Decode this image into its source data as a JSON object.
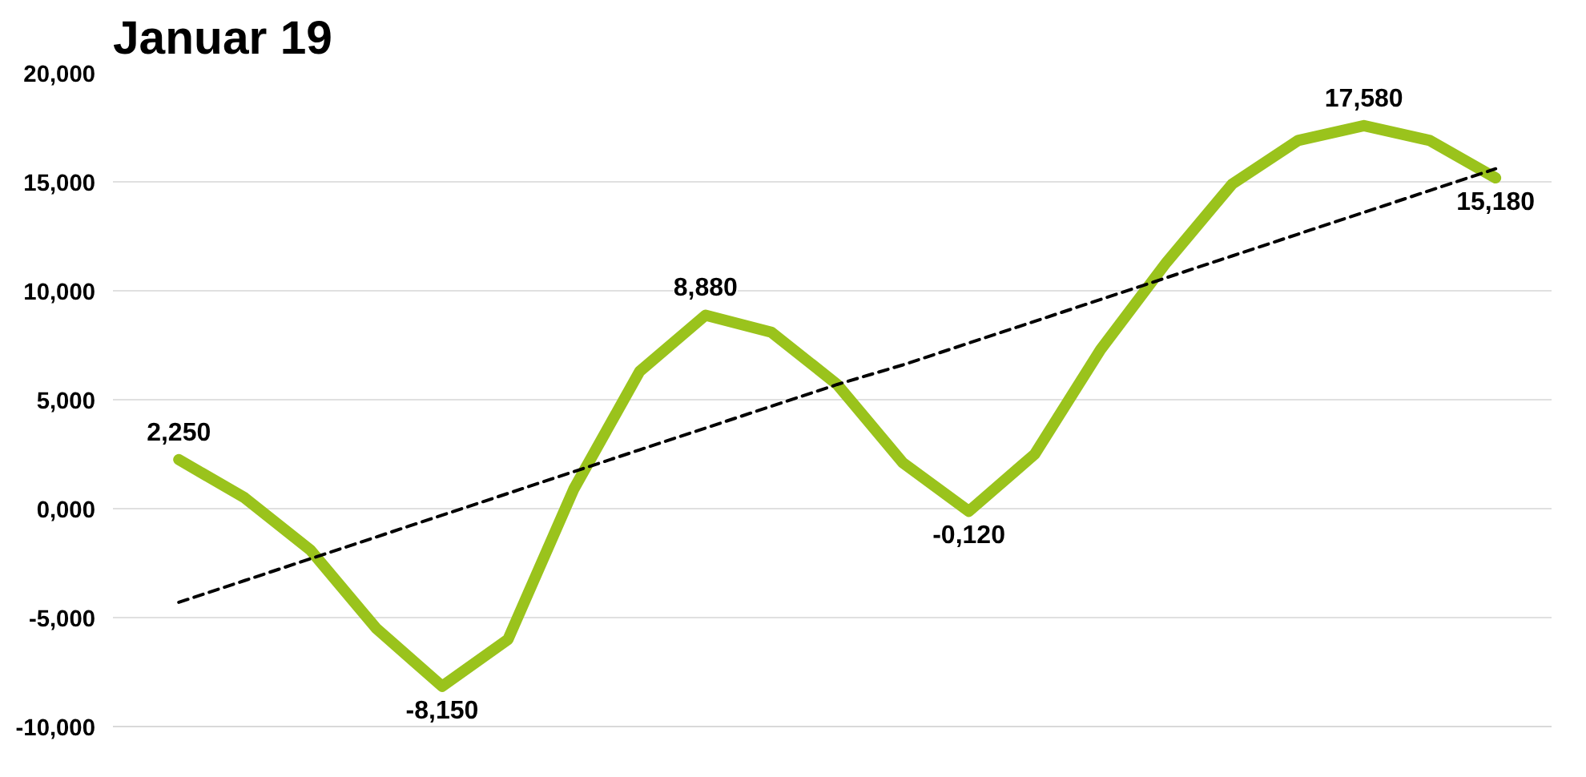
{
  "chart_data": {
    "type": "line",
    "title": "Januar 19",
    "categories": [
      null,
      null,
      null,
      null,
      null,
      null,
      null,
      null,
      null,
      null,
      null,
      null,
      null,
      null,
      null,
      null,
      null,
      null,
      null,
      null,
      null
    ],
    "ylim": [
      -10,
      20
    ],
    "yticks": [
      {
        "value": -10,
        "label": "-10,000"
      },
      {
        "value": -5,
        "label": "-5,000"
      },
      {
        "value": 0,
        "label": "0,000"
      },
      {
        "value": 5,
        "label": "5,000"
      },
      {
        "value": 10,
        "label": "10,000"
      },
      {
        "value": 15,
        "label": "15,000"
      },
      {
        "value": 20,
        "label": "20,000"
      }
    ],
    "tick_labels": "y",
    "grid": "y",
    "series": [
      {
        "color": "#9ac31c",
        "values": [
          2.25,
          0.5,
          -1.9,
          -5.5,
          -8.15,
          -6.0,
          0.9,
          6.3,
          8.88,
          8.1,
          5.7,
          2.1,
          -0.12,
          2.5,
          7.3,
          11.3,
          14.9,
          16.9,
          17.58,
          16.9,
          15.18
        ],
        "value_labels": [
          "2,250",
          null,
          null,
          null,
          "-8,150",
          null,
          null,
          null,
          "8,880",
          null,
          null,
          null,
          "-0,120",
          null,
          null,
          null,
          null,
          null,
          "17,580",
          null,
          "15,180"
        ]
      },
      {
        "color": "#000000",
        "line_style": "dashed",
        "values": [
          -4.3,
          -3.3,
          -2.3,
          -1.3,
          -0.3,
          0.7,
          1.7,
          2.7,
          3.7,
          4.7,
          5.7,
          6.6,
          7.6,
          8.6,
          9.6,
          10.6,
          11.6,
          12.6,
          13.6,
          14.6,
          15.6
        ]
      }
    ]
  }
}
